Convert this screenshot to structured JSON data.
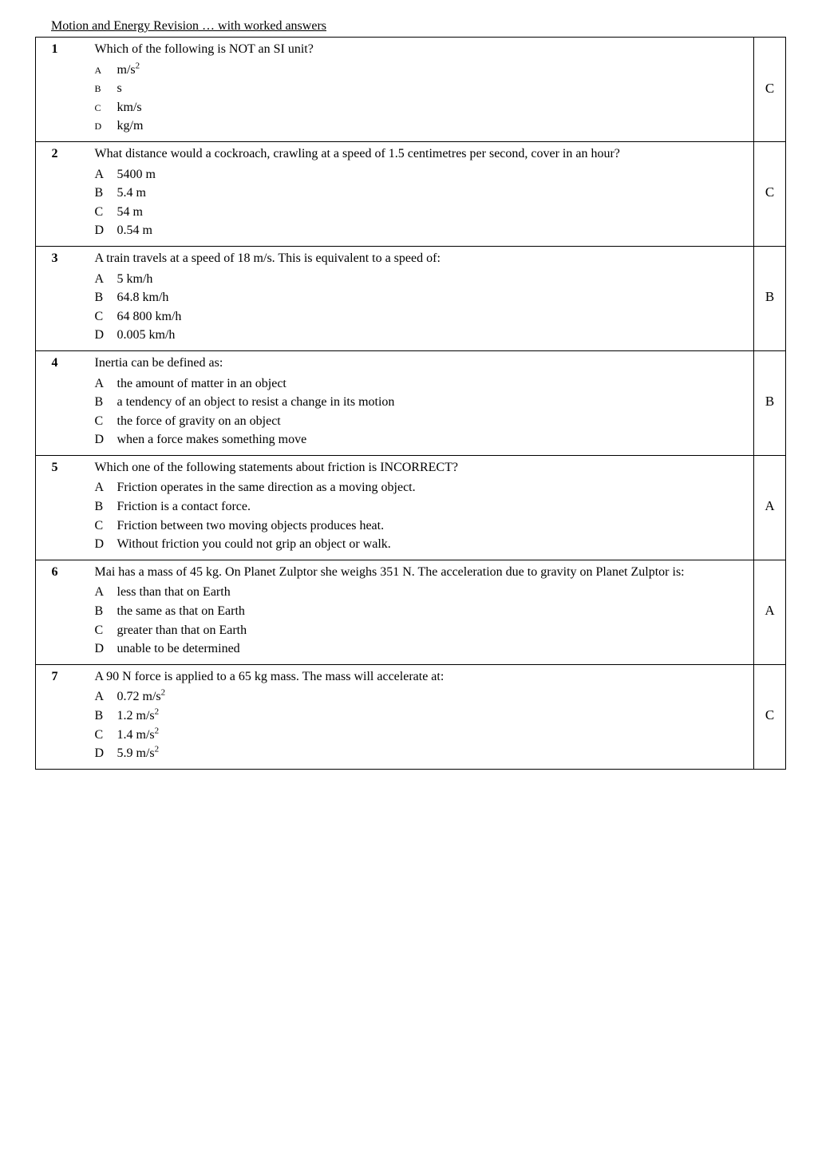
{
  "title": "Motion and Energy Revision … with worked answers",
  "questions": [
    {
      "num": "1",
      "stem": "Which of the following is NOT an SI unit?",
      "letter_size": "small",
      "options": [
        {
          "letter": "A",
          "text_html": "m/s<sup>2</sup>"
        },
        {
          "letter": "B",
          "text_html": "s"
        },
        {
          "letter": "C",
          "text_html": "km/s"
        },
        {
          "letter": "D",
          "text_html": "kg/m"
        }
      ],
      "answer": "C"
    },
    {
      "num": "2",
      "stem": "What distance would a cockroach, crawling at a speed of 1.5 centimetres per second, cover in an hour?",
      "letter_size": "normal",
      "options": [
        {
          "letter": "A",
          "text_html": "5400 m"
        },
        {
          "letter": "B",
          "text_html": "5.4 m"
        },
        {
          "letter": "C",
          "text_html": "54 m"
        },
        {
          "letter": "D",
          "text_html": "0.54 m"
        }
      ],
      "answer": "C"
    },
    {
      "num": "3",
      "stem": "A train travels at a speed of 18 m/s. This is equivalent to a speed of:",
      "letter_size": "normal",
      "options": [
        {
          "letter": "A",
          "text_html": "5 km/h"
        },
        {
          "letter": "B",
          "text_html": "64.8 km/h"
        },
        {
          "letter": "C",
          "text_html": "64 800 km/h"
        },
        {
          "letter": "D",
          "text_html": "0.005 km/h"
        }
      ],
      "answer": "B"
    },
    {
      "num": "4",
      "stem": "Inertia can be defined as:",
      "letter_size": "normal",
      "options": [
        {
          "letter": "A",
          "text_html": "the amount of matter in an object"
        },
        {
          "letter": "B",
          "text_html": "a tendency of an object to resist a change in its motion"
        },
        {
          "letter": "C",
          "text_html": "the force of gravity on an object"
        },
        {
          "letter": "D",
          "text_html": "when a force makes something move"
        }
      ],
      "answer": "B"
    },
    {
      "num": "5",
      "stem": "Which one of the following statements about friction is INCORRECT?",
      "letter_size": "normal",
      "options": [
        {
          "letter": "A",
          "text_html": "Friction operates in the same direction as a moving object."
        },
        {
          "letter": "B",
          "text_html": "Friction is a contact force."
        },
        {
          "letter": "C",
          "text_html": "Friction between two moving objects produces heat."
        },
        {
          "letter": "D",
          "text_html": "Without friction you could not grip an object or walk."
        }
      ],
      "answer": "A"
    },
    {
      "num": "6",
      "stem": "Mai has a mass of 45 kg. On Planet Zulptor she weighs 351 N. The acceleration due to gravity on Planet Zulptor is:",
      "letter_size": "normal",
      "options": [
        {
          "letter": "A",
          "text_html": "less than that on Earth"
        },
        {
          "letter": "B",
          "text_html": "the same as that on Earth"
        },
        {
          "letter": "C",
          "text_html": "greater than that on Earth"
        },
        {
          "letter": "D",
          "text_html": "unable to be determined"
        }
      ],
      "answer": "A"
    },
    {
      "num": "7",
      "stem": "A 90 N force is applied to a 65 kg mass. The mass will accelerate at:",
      "letter_size": "normal",
      "options": [
        {
          "letter": "A",
          "text_html": "0.72 m/s<sup>2</sup>"
        },
        {
          "letter": "B",
          "text_html": "1.2 m/s<sup>2</sup>"
        },
        {
          "letter": "C",
          "text_html": "1.4 m/s<sup>2</sup>"
        },
        {
          "letter": "D",
          "text_html": "5.9 m/s<sup>2</sup>"
        }
      ],
      "answer": "C"
    }
  ]
}
